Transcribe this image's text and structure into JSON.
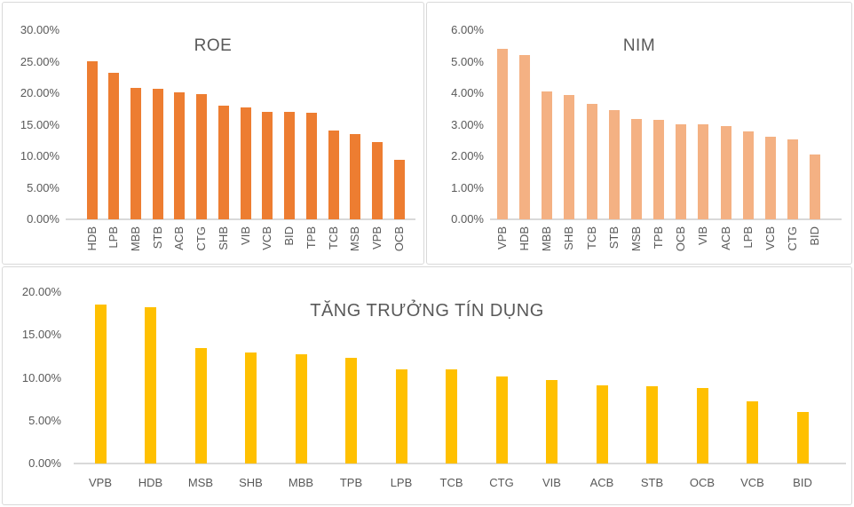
{
  "page": {
    "background": "#ffffff",
    "panel_border_color": "#d9d9d9",
    "axis_color": "#d9d9d9",
    "text_color": "#595959"
  },
  "chart_data": [
    {
      "id": "roe",
      "type": "bar",
      "title": "ROE",
      "categories": [
        "HDB",
        "LPB",
        "MBB",
        "STB",
        "ACB",
        "CTG",
        "SHB",
        "VIB",
        "VCB",
        "BID",
        "TPB",
        "TCB",
        "MSB",
        "VPB",
        "OCB"
      ],
      "values": [
        25.1,
        23.3,
        20.9,
        20.7,
        20.1,
        19.9,
        18.0,
        17.7,
        17.1,
        17.0,
        16.9,
        14.1,
        13.5,
        12.3,
        9.4
      ],
      "value_unit": "percent",
      "ylim": [
        0,
        30
      ],
      "yticks": [
        0,
        5,
        10,
        15,
        20,
        25,
        30
      ],
      "ytick_labels": [
        "0.00%",
        "5.00%",
        "10.00%",
        "15.00%",
        "20.00%",
        "25.00%",
        "30.00%"
      ],
      "bar_color": "#ED7D31",
      "x_label_rotation": -90,
      "grid": false,
      "legend": "none"
    },
    {
      "id": "nim",
      "type": "bar",
      "title": "NIM",
      "categories": [
        "VPB",
        "HDB",
        "MBB",
        "SHB",
        "TCB",
        "STB",
        "MSB",
        "TPB",
        "OCB",
        "VIB",
        "ACB",
        "LPB",
        "VCB",
        "CTG",
        "BID"
      ],
      "values": [
        5.42,
        5.22,
        4.07,
        3.95,
        3.65,
        3.47,
        3.19,
        3.16,
        3.01,
        3.01,
        2.96,
        2.8,
        2.61,
        2.54,
        2.05
      ],
      "value_unit": "percent",
      "ylim": [
        0,
        6
      ],
      "yticks": [
        0,
        1,
        2,
        3,
        4,
        5,
        6
      ],
      "ytick_labels": [
        "0.00%",
        "1.00%",
        "2.00%",
        "3.00%",
        "4.00%",
        "5.00%",
        "6.00%"
      ],
      "bar_color": "#F4B183",
      "x_label_rotation": -90,
      "grid": false,
      "legend": "none"
    },
    {
      "id": "credit-growth",
      "type": "bar",
      "title": "TĂNG TRƯỞNG TÍN DỤNG",
      "categories": [
        "VPB",
        "HDB",
        "MSB",
        "SHB",
        "MBB",
        "TPB",
        "LPB",
        "TCB",
        "CTG",
        "VIB",
        "ACB",
        "STB",
        "OCB",
        "VCB",
        "BID"
      ],
      "values": [
        18.6,
        18.2,
        13.5,
        12.95,
        12.7,
        12.3,
        11.0,
        10.95,
        10.15,
        9.75,
        9.1,
        9.0,
        8.8,
        7.3,
        6.0
      ],
      "value_unit": "percent",
      "ylim": [
        0,
        20
      ],
      "yticks": [
        0,
        5,
        10,
        15,
        20
      ],
      "ytick_labels": [
        "0.00%",
        "5.00%",
        "10.00%",
        "15.00%",
        "20.00%"
      ],
      "bar_color": "#FFC000",
      "x_label_rotation": 0,
      "grid": false,
      "legend": "none"
    }
  ]
}
